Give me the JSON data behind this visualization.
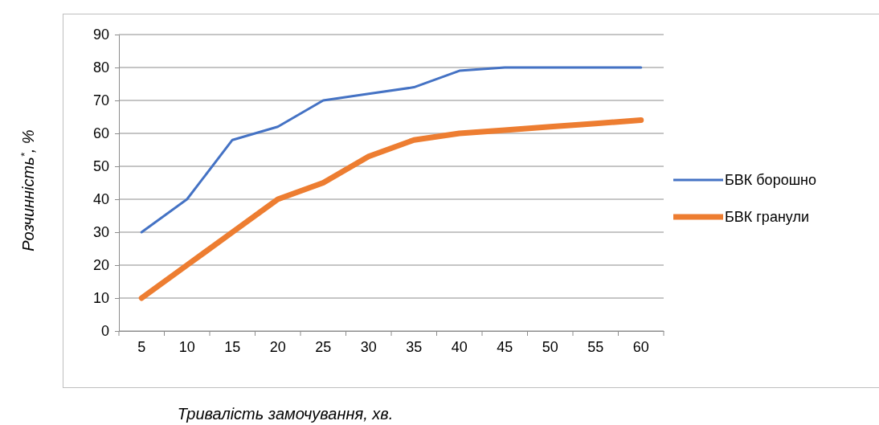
{
  "chart_data": {
    "type": "line",
    "xlabel": "Тривалість замочування, хв.",
    "ylabel": "Розчинність$^{*}$, %",
    "categories": [
      "5",
      "10",
      "15",
      "20",
      "25",
      "30",
      "35",
      "40",
      "45",
      "50",
      "55",
      "60"
    ],
    "series": [
      {
        "name": "БВК борошно",
        "color": "#4472c4",
        "values": [
          30,
          40,
          58,
          62,
          70,
          72,
          74,
          79,
          80,
          80,
          80,
          80
        ]
      },
      {
        "name": "БВК гранули",
        "color": "#ed7d31",
        "values": [
          10,
          20,
          30,
          40,
          45,
          53,
          58,
          60,
          61,
          62,
          63,
          64
        ]
      }
    ],
    "ylim": [
      0,
      90
    ],
    "yticks": [
      0,
      10,
      20,
      30,
      40,
      50,
      60,
      70,
      80,
      90
    ],
    "grid": "y",
    "legend": "right",
    "marker": "none",
    "line_style": "solid"
  }
}
